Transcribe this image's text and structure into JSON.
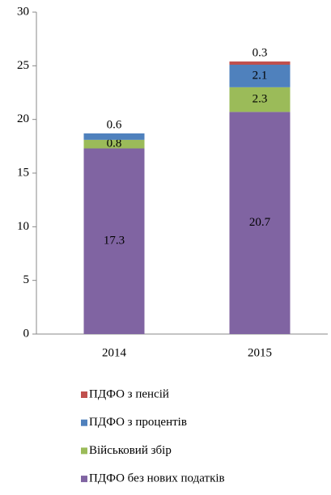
{
  "chart_data": {
    "type": "stacked_bar",
    "categories": [
      "2014",
      "2015"
    ],
    "series": [
      {
        "name": "ПДФО без нових податків",
        "color": "#8064a2",
        "values": [
          17.3,
          20.7
        ]
      },
      {
        "name": "Військовий збір",
        "color": "#9bbb59",
        "values": [
          0.8,
          2.3
        ]
      },
      {
        "name": "ПДФО з процентів",
        "color": "#4f81bd",
        "values": [
          0.6,
          2.1
        ]
      },
      {
        "name": "ПДФО з пенсій",
        "color": "#c0504d",
        "values": [
          null,
          0.3
        ]
      }
    ],
    "ylim": [
      0,
      30
    ],
    "yticks": [
      0,
      5,
      10,
      15,
      20,
      25,
      30
    ],
    "grid": false,
    "legend": "bottom"
  }
}
